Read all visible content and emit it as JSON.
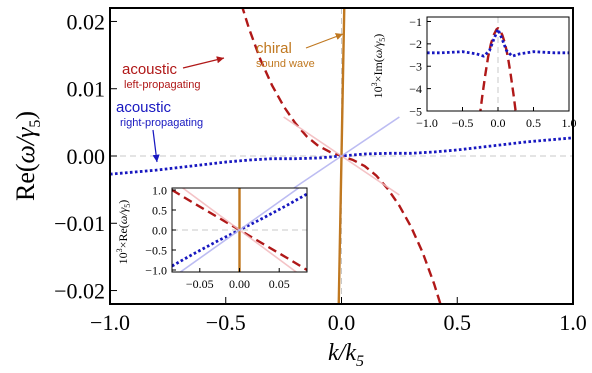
{
  "chart_data": [
    {
      "type": "line",
      "panel": "main",
      "xlabel": "k/k5",
      "ylabel": "Re(ω/γ5)",
      "xlim": [
        -1.0,
        1.0
      ],
      "ylim": [
        -0.022,
        0.022
      ],
      "xticks": [
        -1.0,
        -0.5,
        0.0,
        0.5,
        1.0
      ],
      "xtick_labels": [
        "−1.0",
        "−0.5",
        "0.0",
        "0.5",
        "1.0"
      ],
      "yticks": [
        -0.02,
        -0.01,
        0.0,
        0.01,
        0.02
      ],
      "ytick_labels": [
        "−0.02",
        "−0.01",
        "0.00",
        "0.01",
        "0.02"
      ],
      "grid": false,
      "series": [
        {
          "name": "acoustic left-propagating",
          "style": "dashed",
          "color": "#b01818",
          "points": [
            [
              -0.48,
              0.0285
            ],
            [
              -0.45,
              0.0245
            ],
            [
              -0.4,
              0.019
            ],
            [
              -0.35,
              0.0143
            ],
            [
              -0.3,
              0.0105
            ],
            [
              -0.25,
              0.0074
            ],
            [
              -0.2,
              0.0049
            ],
            [
              -0.15,
              0.0029
            ],
            [
              -0.1,
              0.0015
            ],
            [
              -0.05,
              0.0006
            ],
            [
              0.0,
              0.0
            ],
            [
              0.05,
              -0.0006
            ],
            [
              0.1,
              -0.0015
            ],
            [
              0.15,
              -0.0029
            ],
            [
              0.2,
              -0.0049
            ],
            [
              0.25,
              -0.0074
            ],
            [
              0.3,
              -0.0105
            ],
            [
              0.35,
              -0.0143
            ],
            [
              0.4,
              -0.019
            ],
            [
              0.45,
              -0.0245
            ],
            [
              0.48,
              -0.0285
            ]
          ]
        },
        {
          "name": "acoustic right-propagating",
          "style": "dotted",
          "color": "#1818c0",
          "points": [
            [
              -1.0,
              -0.0027
            ],
            [
              -0.9,
              -0.0024
            ],
            [
              -0.8,
              -0.0021
            ],
            [
              -0.7,
              -0.0017
            ],
            [
              -0.6,
              -0.0013
            ],
            [
              -0.5,
              -0.0009
            ],
            [
              -0.4,
              -0.0006
            ],
            [
              -0.3,
              -0.0004
            ],
            [
              -0.2,
              -0.0004
            ],
            [
              -0.1,
              -0.0003
            ],
            [
              0.0,
              0.0
            ],
            [
              0.1,
              0.0003
            ],
            [
              0.2,
              0.0004
            ],
            [
              0.3,
              0.0004
            ],
            [
              0.4,
              0.0006
            ],
            [
              0.5,
              0.0009
            ],
            [
              0.6,
              0.0013
            ],
            [
              0.7,
              0.0017
            ],
            [
              0.8,
              0.0021
            ],
            [
              0.9,
              0.0024
            ],
            [
              1.0,
              0.0027
            ]
          ]
        },
        {
          "name": "chiral sound wave",
          "style": "solid",
          "color": "#c07820",
          "points": [
            [
              -0.013,
              -0.024
            ],
            [
              0.013,
              0.024
            ]
          ]
        },
        {
          "name": "",
          "style": "solid-faint",
          "color": "#f2b8bc",
          "points": [
            [
              -0.25,
              0.0058
            ],
            [
              0.25,
              -0.0058
            ]
          ]
        },
        {
          "name": "",
          "style": "solid-faint",
          "color": "#b0b0f0",
          "points": [
            [
              -0.25,
              -0.0058
            ],
            [
              0.25,
              0.0058
            ]
          ]
        }
      ],
      "annotations": [
        {
          "id": "acoustic-left",
          "title": "acoustic",
          "subtitle": "left-propagating",
          "color": "#b01818"
        },
        {
          "id": "acoustic-right",
          "title": "acoustic",
          "subtitle": "right-propagating",
          "color": "#1818c0"
        },
        {
          "id": "chiral",
          "title": "chiral",
          "subtitle": "sound wave",
          "color": "#c07820"
        }
      ]
    },
    {
      "type": "line",
      "panel": "inset-top-right",
      "ylabel": "10^3×Im(ω/γ5)",
      "xlim": [
        -1.0,
        1.0
      ],
      "ylim": [
        -5,
        -0.8
      ],
      "xticks": [
        -1.0,
        -0.5,
        0.0,
        0.5,
        1.0
      ],
      "xtick_labels": [
        "−1.0",
        "−0.5",
        "0.0",
        "0.5",
        "1.0"
      ],
      "yticks": [
        -5,
        -4,
        -3,
        -2,
        -1
      ],
      "ytick_labels": [
        "−5",
        "−4",
        "−3",
        "−2",
        "−1"
      ],
      "series": [
        {
          "name": "",
          "style": "dashed",
          "color": "#b01818",
          "points": [
            [
              -0.26,
              -5.3
            ],
            [
              -0.22,
              -4.3
            ],
            [
              -0.18,
              -3.4
            ],
            [
              -0.14,
              -2.6
            ],
            [
              -0.1,
              -2.0
            ],
            [
              -0.06,
              -1.6
            ],
            [
              -0.02,
              -1.35
            ],
            [
              0.0,
              -1.3
            ],
            [
              0.02,
              -1.35
            ],
            [
              0.06,
              -1.6
            ],
            [
              0.1,
              -2.0
            ],
            [
              0.14,
              -2.6
            ],
            [
              0.18,
              -3.4
            ],
            [
              0.22,
              -4.3
            ],
            [
              0.26,
              -5.3
            ]
          ]
        },
        {
          "name": "",
          "style": "dotted",
          "color": "#1818c0",
          "points": [
            [
              -1.0,
              -2.4
            ],
            [
              -0.8,
              -2.4
            ],
            [
              -0.5,
              -2.35
            ],
            [
              -0.3,
              -2.45
            ],
            [
              -0.2,
              -2.55
            ],
            [
              -0.12,
              -2.3
            ],
            [
              -0.06,
              -1.8
            ],
            [
              0.0,
              -1.35
            ],
            [
              0.06,
              -1.8
            ],
            [
              0.12,
              -2.3
            ],
            [
              0.2,
              -2.55
            ],
            [
              0.3,
              -2.45
            ],
            [
              0.5,
              -2.35
            ],
            [
              0.8,
              -2.4
            ],
            [
              1.0,
              -2.4
            ]
          ]
        }
      ]
    },
    {
      "type": "line",
      "panel": "inset-bottom-left",
      "ylabel": "10^3×Re(ω/γ5)",
      "xlim": [
        -0.085,
        0.085
      ],
      "ylim": [
        -1.05,
        1.05
      ],
      "xticks": [
        -0.05,
        0.0,
        0.05
      ],
      "xtick_labels": [
        "−0.05",
        "0.00",
        "0.05"
      ],
      "yticks": [
        -1.0,
        -0.5,
        0.0,
        0.5,
        1.0
      ],
      "ytick_labels": [
        "−1.0",
        "−0.5",
        "0.0",
        "0.5",
        "1.0"
      ],
      "series": [
        {
          "name": "",
          "style": "dashed",
          "color": "#b01818",
          "points": [
            [
              -0.085,
              1.0
            ],
            [
              -0.06,
              0.7
            ],
            [
              -0.03,
              0.35
            ],
            [
              0.0,
              0.0
            ],
            [
              0.03,
              -0.35
            ],
            [
              0.06,
              -0.7
            ],
            [
              0.085,
              -1.0
            ]
          ]
        },
        {
          "name": "",
          "style": "dotted",
          "color": "#1818c0",
          "points": [
            [
              -0.085,
              -0.9
            ],
            [
              -0.06,
              -0.62
            ],
            [
              -0.03,
              -0.3
            ],
            [
              0.0,
              0.0
            ],
            [
              0.03,
              0.3
            ],
            [
              0.06,
              0.62
            ],
            [
              0.085,
              0.9
            ]
          ]
        },
        {
          "name": "",
          "style": "solid",
          "color": "#c07820",
          "points": [
            [
              0.0,
              -1.05
            ],
            [
              0.0,
              1.05
            ]
          ]
        },
        {
          "name": "",
          "style": "solid-faint",
          "color": "#f2b8bc",
          "points": [
            [
              -0.085,
              1.25
            ],
            [
              0.085,
              -1.25
            ]
          ]
        },
        {
          "name": "",
          "style": "solid-faint",
          "color": "#b0b0f0",
          "points": [
            [
              -0.085,
              -1.2
            ],
            [
              0.085,
              1.2
            ]
          ]
        }
      ]
    }
  ]
}
